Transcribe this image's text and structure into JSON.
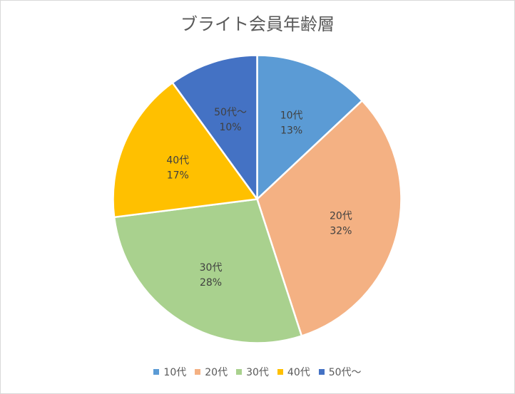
{
  "chart_data": {
    "type": "pie",
    "title": "ブライト会員年齢層",
    "categories": [
      "10代",
      "20代",
      "30代",
      "40代",
      "50代～"
    ],
    "values": [
      13,
      32,
      28,
      17,
      10
    ],
    "value_labels": [
      "13%",
      "32%",
      "28%",
      "17%",
      "10%"
    ],
    "colors": [
      "#5B9BD5",
      "#F4B183",
      "#A9D18E",
      "#FFC000",
      "#4472C4"
    ],
    "legend_position": "bottom",
    "start_angle": "12 o'clock, clockwise"
  }
}
